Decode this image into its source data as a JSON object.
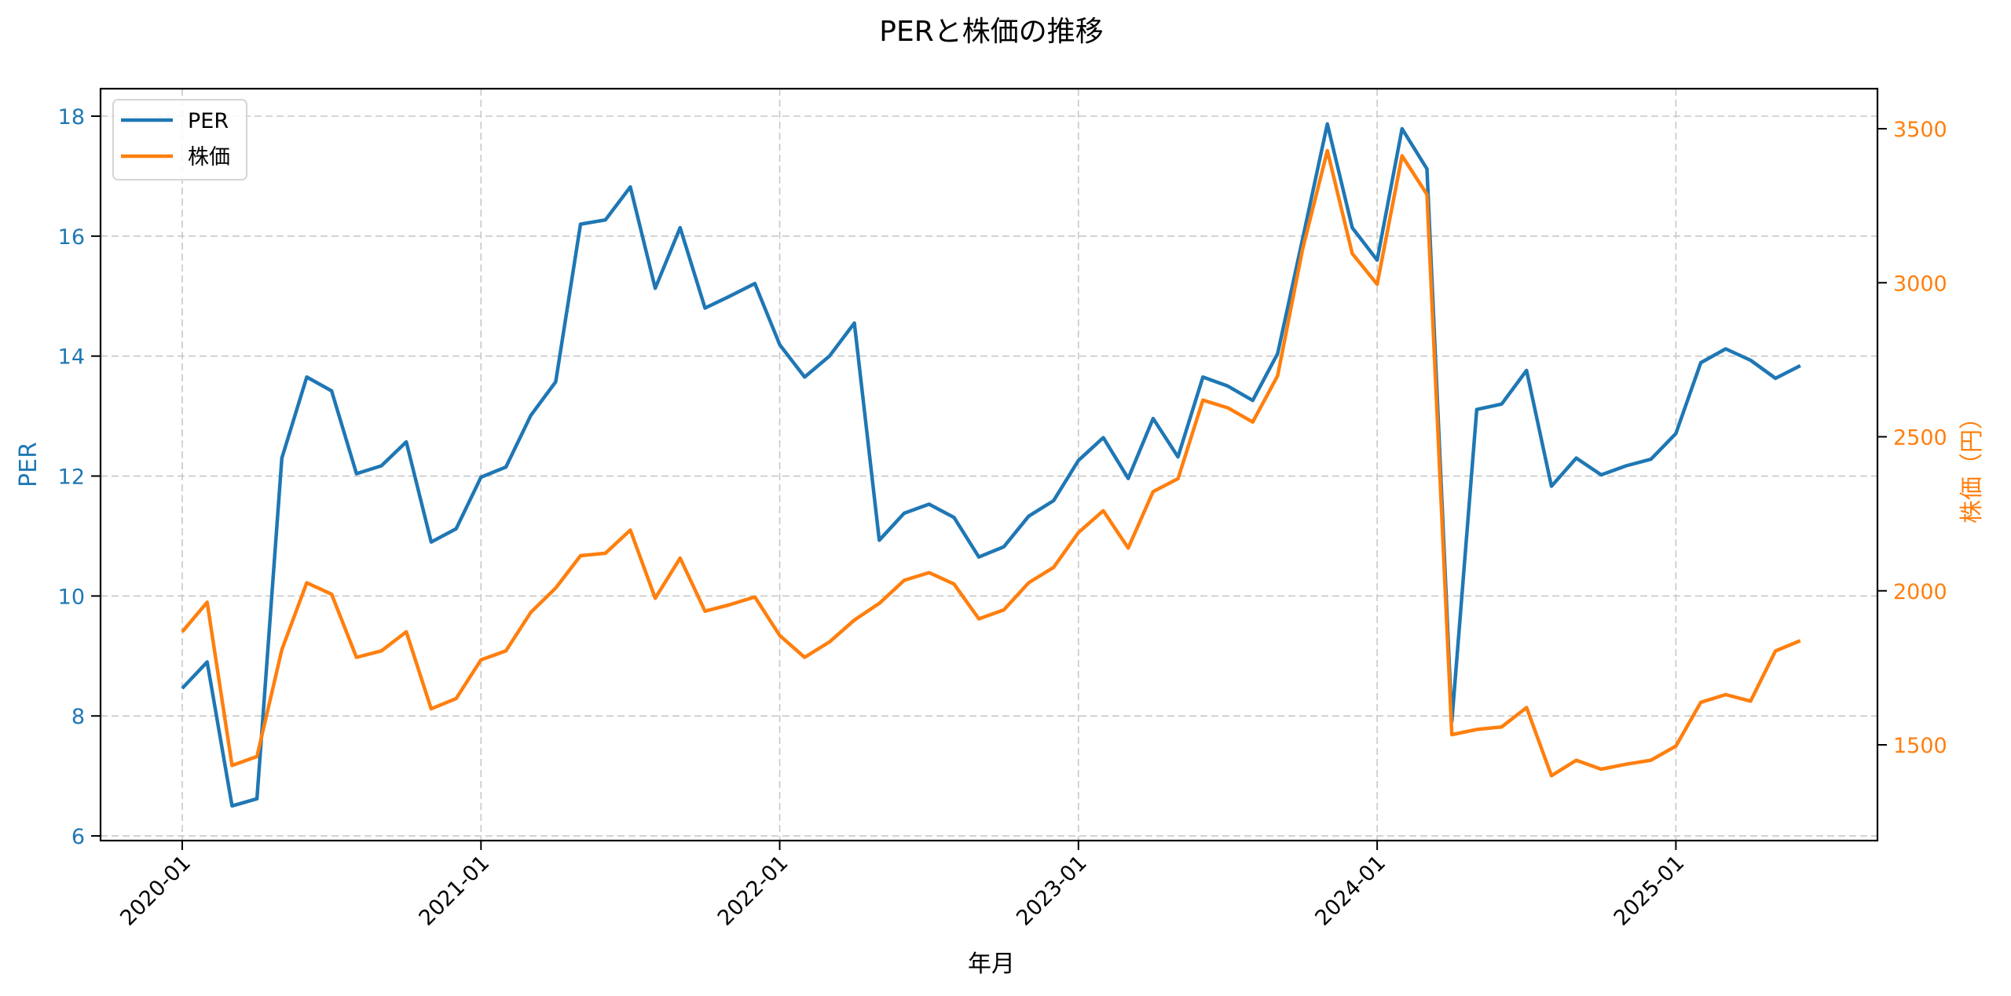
{
  "chart_data": {
    "type": "line",
    "title": "PERと株価の推移",
    "xlabel": "年月",
    "ylabel": "PER",
    "ylabel_right": "株価（円）",
    "ylim": [
      5.92,
      18.46
    ],
    "ylim_right": [
      1189,
      3630
    ],
    "yticks": [
      6,
      8,
      10,
      12,
      14,
      16,
      18
    ],
    "yticks_right": [
      1500,
      2000,
      2500,
      3000,
      3500
    ],
    "xtick_labels": [
      "2020-01",
      "2021-01",
      "2022-01",
      "2023-01",
      "2024-01",
      "2025-01"
    ],
    "grid": true,
    "legend_position": "upper left",
    "x": [
      "2020-01",
      "2020-02",
      "2020-03",
      "2020-04",
      "2020-05",
      "2020-06",
      "2020-07",
      "2020-08",
      "2020-09",
      "2020-10",
      "2020-11",
      "2020-12",
      "2021-01",
      "2021-02",
      "2021-03",
      "2021-04",
      "2021-05",
      "2021-06",
      "2021-07",
      "2021-08",
      "2021-09",
      "2021-10",
      "2021-11",
      "2021-12",
      "2022-01",
      "2022-02",
      "2022-03",
      "2022-04",
      "2022-05",
      "2022-06",
      "2022-07",
      "2022-08",
      "2022-09",
      "2022-10",
      "2022-11",
      "2022-12",
      "2023-01",
      "2023-02",
      "2023-03",
      "2023-04",
      "2023-05",
      "2023-06",
      "2023-07",
      "2023-08",
      "2023-09",
      "2023-10",
      "2023-11",
      "2023-12",
      "2024-01",
      "2024-02",
      "2024-03",
      "2024-04",
      "2024-05",
      "2024-06",
      "2024-07",
      "2024-08",
      "2024-09",
      "2024-10",
      "2024-11",
      "2024-12",
      "2025-01",
      "2025-02",
      "2025-03",
      "2025-04",
      "2025-05",
      "2025-06"
    ],
    "series": [
      {
        "name": "PER",
        "axis": "left",
        "color": "#1f77b4",
        "values": [
          8.46,
          8.9,
          6.5,
          6.62,
          12.3,
          13.65,
          13.42,
          12.04,
          12.17,
          12.57,
          10.9,
          11.12,
          11.98,
          12.15,
          13.01,
          13.57,
          16.2,
          16.27,
          16.82,
          15.13,
          16.14,
          14.8,
          15.0,
          15.21,
          14.19,
          13.65,
          14.0,
          14.55,
          10.93,
          11.38,
          11.53,
          11.31,
          10.65,
          10.82,
          11.33,
          11.59,
          12.26,
          12.64,
          11.96,
          12.96,
          12.32,
          13.65,
          13.5,
          13.26,
          14.04,
          15.94,
          17.87,
          16.14,
          15.6,
          17.79,
          17.12,
          7.91,
          13.11,
          13.2,
          13.76,
          11.83,
          12.3,
          12.02,
          12.17,
          12.28,
          12.71,
          13.89,
          14.12,
          13.93,
          13.63,
          13.84
        ]
      },
      {
        "name": "株価",
        "axis": "right",
        "color": "#ff7f0e",
        "values": [
          1867,
          1963,
          1433,
          1462,
          1809,
          2026,
          1989,
          1784,
          1805,
          1867,
          1617,
          1650,
          1776,
          1805,
          1930,
          2009,
          2114,
          2122,
          2197,
          1976,
          2106,
          1934,
          1955,
          1980,
          1855,
          1784,
          1834,
          1905,
          1959,
          2034,
          2059,
          2022,
          1909,
          1938,
          2026,
          2076,
          2189,
          2260,
          2139,
          2322,
          2364,
          2619,
          2594,
          2548,
          2698,
          3107,
          3429,
          3095,
          2995,
          3412,
          3287,
          1533,
          1550,
          1558,
          1621,
          1400,
          1450,
          1421,
          1437,
          1450,
          1496,
          1638,
          1663,
          1642,
          1805,
          1838
        ]
      }
    ]
  },
  "legend": {
    "items": [
      {
        "label": "PER",
        "color": "#1f77b4"
      },
      {
        "label": "株価",
        "color": "#ff7f0e"
      }
    ]
  }
}
